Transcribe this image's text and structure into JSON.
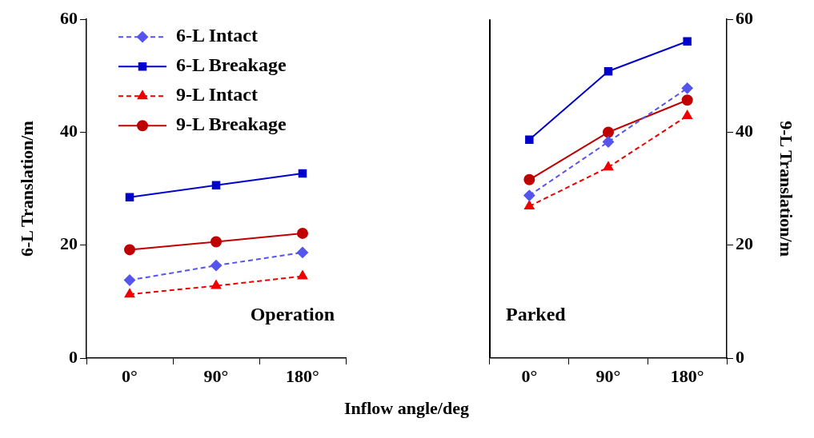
{
  "chart_data": [
    {
      "type": "line",
      "xlabel": "Inflow angle/deg",
      "ylabel": "6-L Translation/m",
      "categories": [
        "0°",
        "90°",
        "180°"
      ],
      "ylim": [
        0,
        60
      ],
      "yticks": [
        0,
        20,
        40,
        60
      ],
      "grid": false,
      "legend": "top left",
      "annotations": [
        "Operation"
      ],
      "series": [
        {
          "name": "6-L Intact",
          "color": "#5555ee",
          "marker": "diamond",
          "line_style": "dashed",
          "values": [
            13.8,
            16.4,
            18.7
          ]
        },
        {
          "name": "6-L Breakage",
          "color": "#0000cc",
          "marker": "square",
          "line_style": "solid",
          "values": [
            28.5,
            30.6,
            32.7
          ]
        },
        {
          "name": "9-L Intact",
          "color": "#ee0000",
          "marker": "triangle",
          "line_style": "dashed",
          "values": [
            11.3,
            12.8,
            14.5
          ]
        },
        {
          "name": "9-L Breakage",
          "color": "#c00000",
          "marker": "circle",
          "line_style": "solid",
          "values": [
            19.2,
            20.6,
            22.1
          ]
        }
      ]
    },
    {
      "type": "line",
      "y2label": "9-L Translation/m",
      "categories": [
        "0°",
        "90°",
        "180°"
      ],
      "y2lim": [
        0,
        60
      ],
      "y2ticks": [
        0,
        20,
        40,
        60
      ],
      "grid": false,
      "annotations": [
        "Parked"
      ],
      "series": [
        {
          "color": "#5555ee",
          "marker": "diamond",
          "line_style": "dashed",
          "axis": "y2",
          "values": [
            28.8,
            38.3,
            47.8
          ]
        },
        {
          "color": "#0000cc",
          "marker": "square",
          "line_style": "solid",
          "axis": "y2",
          "values": [
            38.7,
            50.8,
            56.1
          ]
        },
        {
          "color": "#ee0000",
          "marker": "triangle",
          "line_style": "dashed",
          "axis": "y2",
          "values": [
            26.9,
            33.8,
            42.9
          ]
        },
        {
          "color": "#c00000",
          "marker": "circle",
          "line_style": "solid",
          "axis": "y2",
          "values": [
            31.6,
            40.0,
            45.7
          ]
        }
      ]
    }
  ]
}
